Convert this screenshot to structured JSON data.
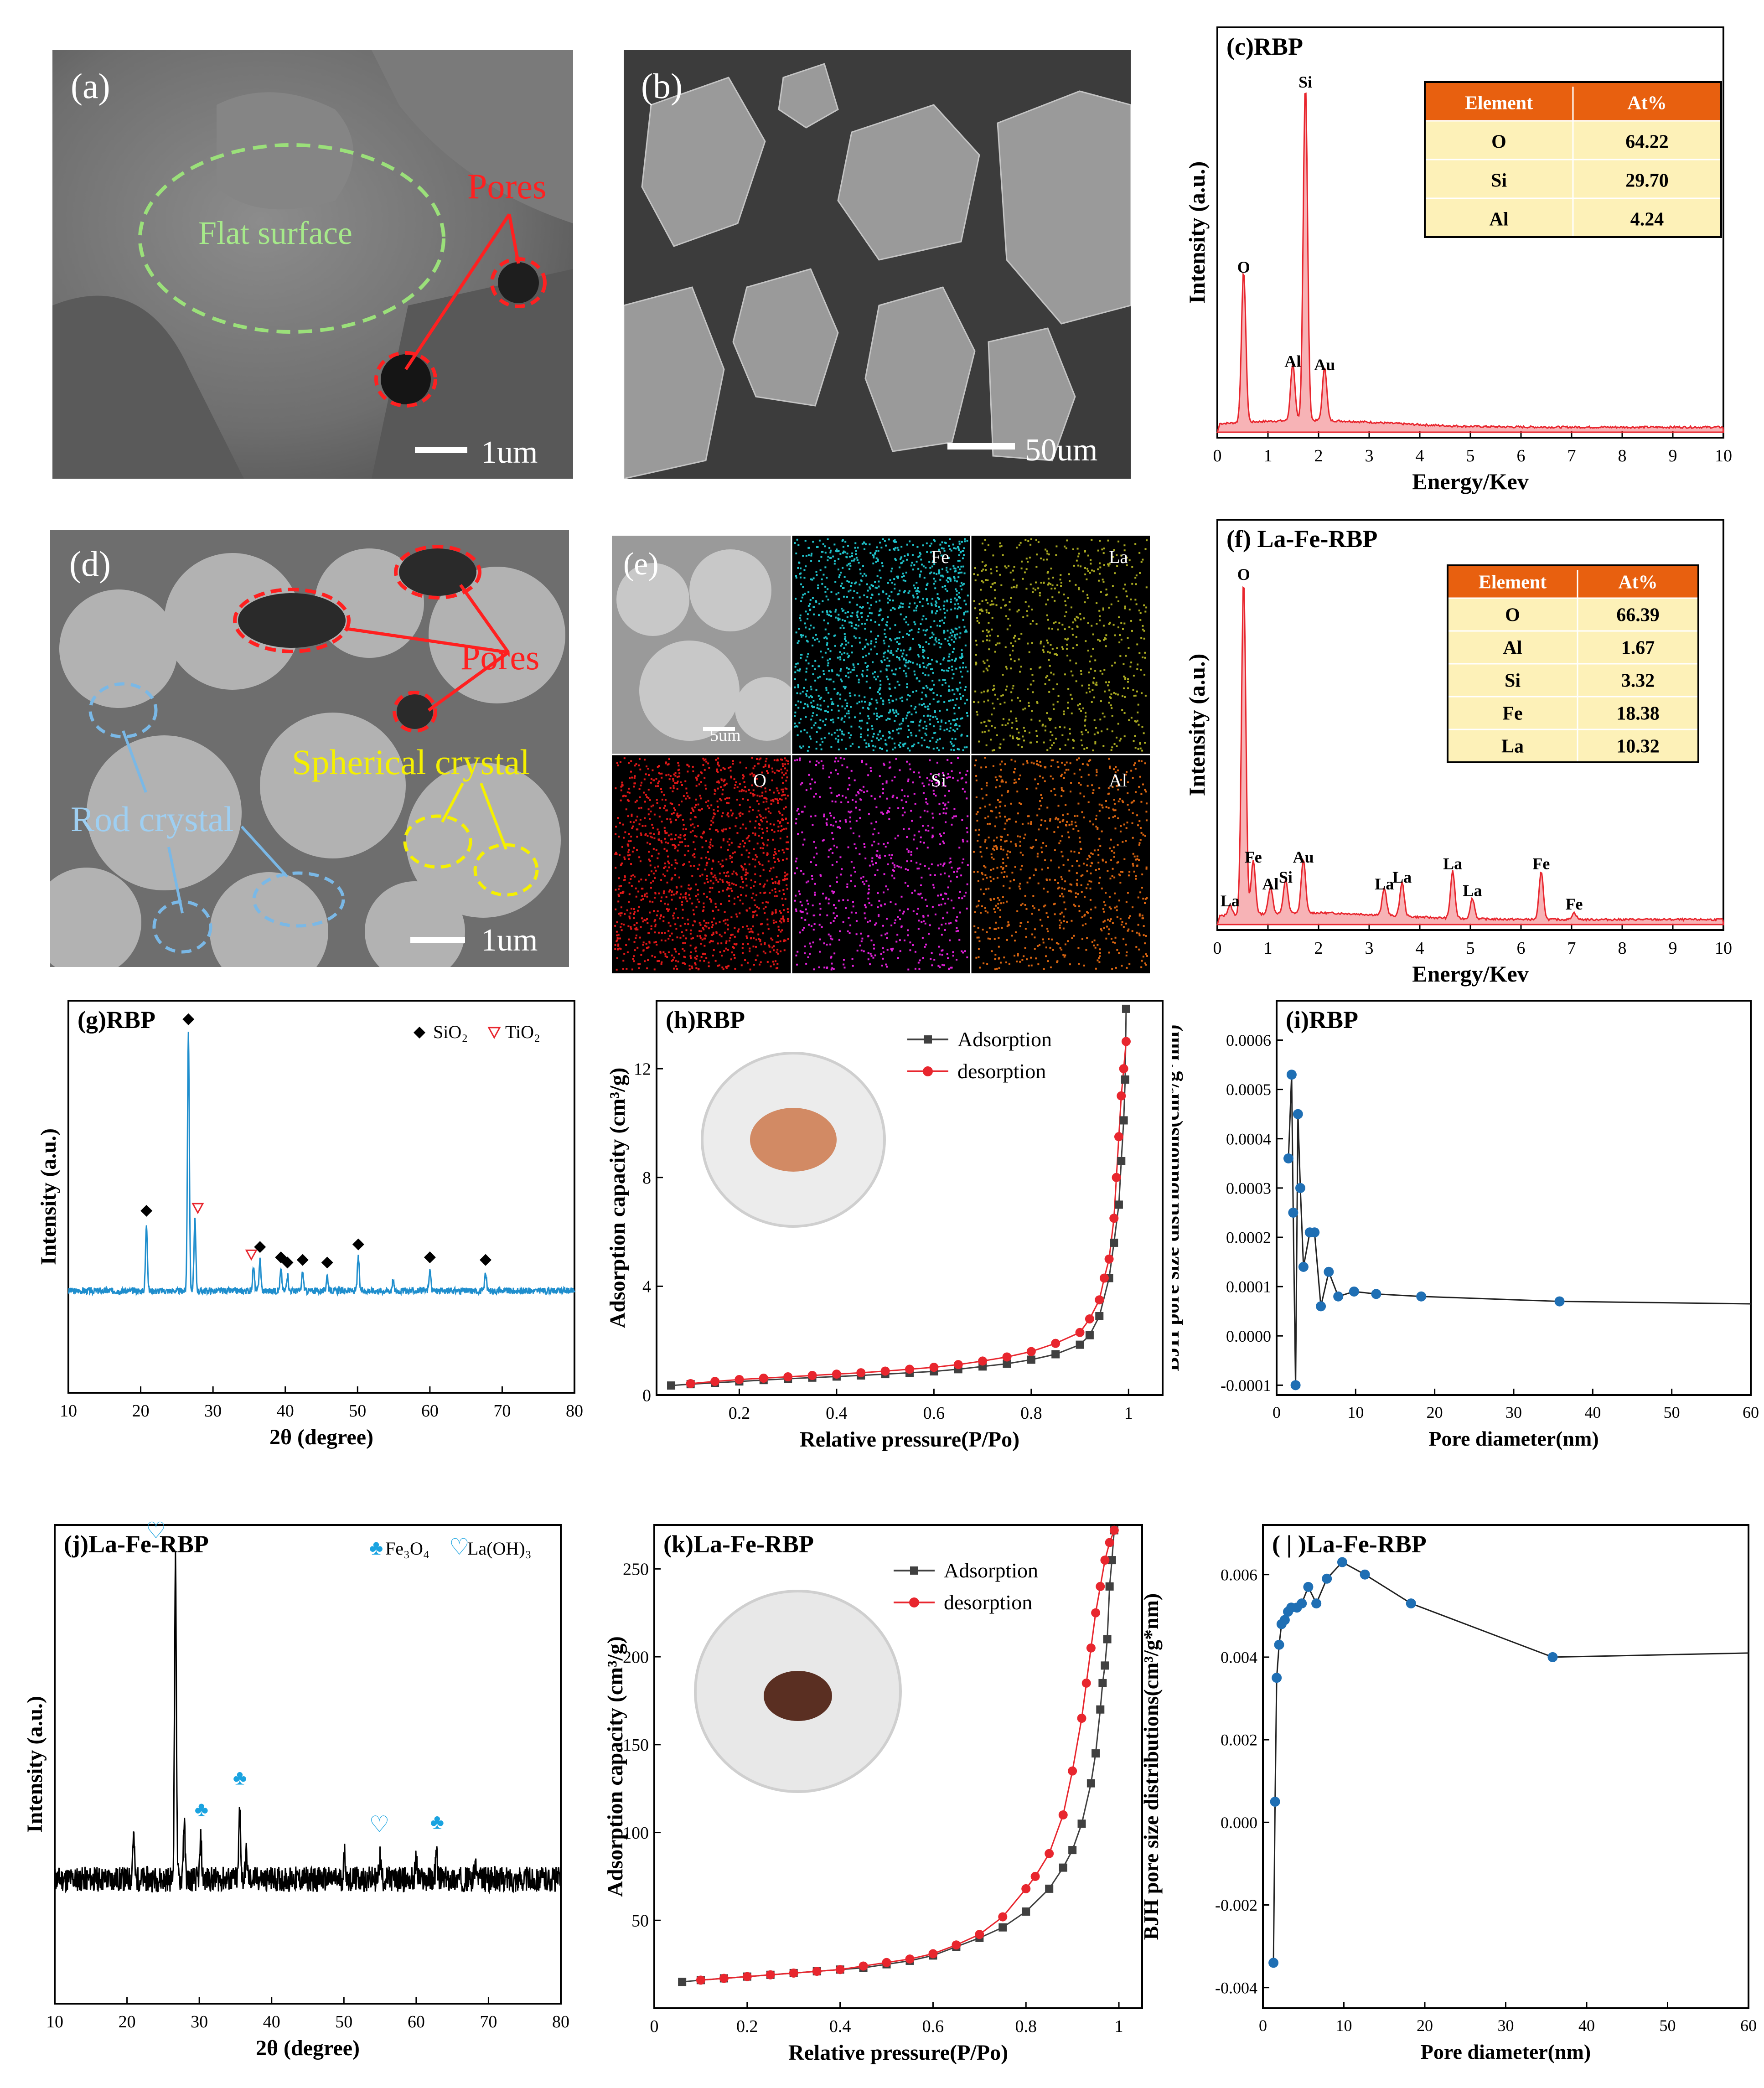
{
  "panel_a": {
    "label": "(a)",
    "flat_surface": "Flat surface",
    "pores": "Pores",
    "scale": "1um"
  },
  "panel_b": {
    "label": "(b)",
    "scale": "50um"
  },
  "panel_d": {
    "label": "(d)",
    "pores": "Pores",
    "rod_crystal": "Rod crystal",
    "spherical_crystal": "Spherical crystal",
    "scale": "1um"
  },
  "panel_e": {
    "label": "(e)",
    "scale": "5um",
    "maps": [
      "Fe",
      "La",
      "O",
      "Si",
      "Al"
    ]
  },
  "colors": {
    "eds": "#e8262e",
    "xrd_rbp": "#1f8ecd",
    "adsorption": "#404040",
    "desorption": "#e8262e",
    "bjh": "#1f6fb4",
    "table_header": "#e8600f",
    "table_body": "#fdf1b8"
  },
  "chart_data": [
    {
      "id": "c",
      "type": "line",
      "title": "(c)RBP",
      "xlabel": "Energy/Kev",
      "ylabel": "Intensity (a.u.)",
      "xlim": [
        0,
        10
      ],
      "xticks": [
        0,
        1,
        2,
        3,
        4,
        5,
        6,
        7,
        8,
        9,
        10
      ],
      "peaks": [
        {
          "label": "O",
          "x": 0.52,
          "y": 0.45
        },
        {
          "label": "Si",
          "x": 1.74,
          "y": 1.0
        },
        {
          "label": "Al",
          "x": 1.49,
          "y": 0.17
        },
        {
          "label": "Au",
          "x": 2.12,
          "y": 0.16
        }
      ],
      "table": {
        "headers": [
          "Element",
          "At%"
        ],
        "rows": [
          [
            "O",
            "64.22"
          ],
          [
            "Si",
            "29.70"
          ],
          [
            "Al",
            "4.24"
          ]
        ]
      }
    },
    {
      "id": "f",
      "type": "line",
      "title": "(f) La-Fe-RBP",
      "xlabel": "Energy/Kev",
      "ylabel": "Intensity (a.u.)",
      "xlim": [
        0,
        10
      ],
      "xticks": [
        0,
        1,
        2,
        3,
        4,
        5,
        6,
        7,
        8,
        9,
        10
      ],
      "peaks": [
        {
          "label": "O",
          "x": 0.52,
          "y": 1.0
        },
        {
          "label": "La",
          "x": 0.25,
          "y": 0.03
        },
        {
          "label": "Fe",
          "x": 0.71,
          "y": 0.16
        },
        {
          "label": "Al",
          "x": 1.05,
          "y": 0.08
        },
        {
          "label": "Si",
          "x": 1.35,
          "y": 0.1
        },
        {
          "label": "Au",
          "x": 1.7,
          "y": 0.16
        },
        {
          "label": "La",
          "x": 3.3,
          "y": 0.08
        },
        {
          "label": "La",
          "x": 3.65,
          "y": 0.1
        },
        {
          "label": "La",
          "x": 4.65,
          "y": 0.14
        },
        {
          "label": "La",
          "x": 5.04,
          "y": 0.06
        },
        {
          "label": "Fe",
          "x": 6.4,
          "y": 0.14
        },
        {
          "label": "Fe",
          "x": 7.05,
          "y": 0.02
        }
      ],
      "table": {
        "headers": [
          "Element",
          "At%"
        ],
        "rows": [
          [
            "O",
            "66.39"
          ],
          [
            "Al",
            "1.67"
          ],
          [
            "Si",
            "3.32"
          ],
          [
            "Fe",
            "18.38"
          ],
          [
            "La",
            "10.32"
          ]
        ]
      }
    },
    {
      "id": "g",
      "type": "line",
      "title": "(g)RBP",
      "xlabel": "2θ (degree)",
      "ylabel": "Intensity (a.u.)",
      "xlim": [
        10,
        80
      ],
      "xticks": [
        10,
        20,
        30,
        40,
        50,
        60,
        70,
        80
      ],
      "legend": [
        {
          "symbol": "◆",
          "label": "SiO₂"
        },
        {
          "symbol": "▽",
          "label": "TiO₂"
        }
      ],
      "peaks": [
        {
          "x": 20.8,
          "y": 0.26
        },
        {
          "x": 26.6,
          "y": 1.0
        },
        {
          "x": 27.5,
          "y": 0.27
        },
        {
          "x": 35.6,
          "y": 0.09
        },
        {
          "x": 36.5,
          "y": 0.12
        },
        {
          "x": 39.4,
          "y": 0.08
        },
        {
          "x": 40.3,
          "y": 0.06
        },
        {
          "x": 42.4,
          "y": 0.07
        },
        {
          "x": 45.8,
          "y": 0.06
        },
        {
          "x": 50.1,
          "y": 0.13
        },
        {
          "x": 54.9,
          "y": 0.04
        },
        {
          "x": 60.0,
          "y": 0.08
        },
        {
          "x": 67.7,
          "y": 0.07
        }
      ],
      "markers": [
        {
          "x": 20.8,
          "type": "SiO2"
        },
        {
          "x": 26.6,
          "type": "SiO2"
        },
        {
          "x": 27.9,
          "type": "TiO2"
        },
        {
          "x": 35.3,
          "type": "TiO2"
        },
        {
          "x": 36.5,
          "type": "SiO2"
        },
        {
          "x": 39.4,
          "type": "SiO2"
        },
        {
          "x": 40.3,
          "type": "SiO2"
        },
        {
          "x": 42.4,
          "type": "SiO2"
        },
        {
          "x": 45.8,
          "type": "SiO2"
        },
        {
          "x": 50.1,
          "type": "SiO2"
        },
        {
          "x": 60.0,
          "type": "SiO2"
        },
        {
          "x": 67.7,
          "type": "SiO2"
        }
      ]
    },
    {
      "id": "h",
      "type": "line",
      "title": "(h)RBP",
      "xlabel": "Relative pressure(P/Po)",
      "ylabel": "Adsorption capacity (cm³/g)",
      "xlim": [
        0.03,
        1.07
      ],
      "ylim": [
        0,
        14.5
      ],
      "xticks": [
        0.2,
        0.4,
        0.6,
        0.8,
        1.0
      ],
      "yticks": [
        0,
        4,
        8,
        12
      ],
      "series": [
        {
          "name": "Adsorption",
          "x": [
            0.06,
            0.1,
            0.15,
            0.2,
            0.25,
            0.3,
            0.35,
            0.4,
            0.45,
            0.5,
            0.55,
            0.6,
            0.65,
            0.7,
            0.75,
            0.8,
            0.85,
            0.9,
            0.92,
            0.94,
            0.96,
            0.97,
            0.98,
            0.985,
            0.99,
            0.993,
            0.995
          ],
          "y": [
            0.35,
            0.4,
            0.45,
            0.5,
            0.55,
            0.6,
            0.64,
            0.68,
            0.72,
            0.77,
            0.82,
            0.87,
            0.95,
            1.05,
            1.15,
            1.3,
            1.5,
            1.85,
            2.2,
            2.9,
            4.3,
            5.6,
            7.0,
            8.6,
            10.1,
            11.6,
            14.2
          ]
        },
        {
          "name": "desorption",
          "x": [
            0.995,
            0.99,
            0.985,
            0.98,
            0.975,
            0.97,
            0.96,
            0.95,
            0.94,
            0.92,
            0.9,
            0.85,
            0.8,
            0.75,
            0.7,
            0.65,
            0.6,
            0.55,
            0.5,
            0.45,
            0.4,
            0.35,
            0.3,
            0.25,
            0.2,
            0.15,
            0.1
          ],
          "y": [
            13.0,
            12.0,
            11.0,
            9.5,
            8.0,
            6.5,
            5.0,
            4.3,
            3.5,
            2.8,
            2.3,
            1.9,
            1.6,
            1.4,
            1.25,
            1.12,
            1.02,
            0.95,
            0.88,
            0.82,
            0.77,
            0.72,
            0.67,
            0.62,
            0.57,
            0.5,
            0.42
          ]
        }
      ]
    },
    {
      "id": "i",
      "type": "line",
      "title": "(i)RBP",
      "xlabel": "Pore diameter(nm)",
      "ylabel": "BJH pore size distributions(cm³/g*nm)",
      "xlim": [
        0,
        60
      ],
      "ylim": [
        -0.00012,
        0.00068
      ],
      "xticks": [
        0,
        10,
        20,
        30,
        40,
        50,
        60
      ],
      "yticks": [
        -0.0001,
        0,
        0.0001,
        0.0002,
        0.0003,
        0.0004,
        0.0005,
        0.0006
      ],
      "ytick_labels": [
        "-0.0001",
        "0.0000",
        "0.0001",
        "0.0002",
        "0.0003",
        "0.0004",
        "0.0005",
        "0.0006"
      ],
      "points": {
        "x": [
          1.5,
          1.9,
          2.1,
          2.4,
          2.7,
          3.0,
          3.4,
          4.2,
          4.8,
          5.6,
          6.6,
          7.8,
          9.8,
          12.6,
          18.3,
          35.8
        ],
        "y": [
          0.00036,
          0.00053,
          0.00025,
          -0.0001,
          0.00045,
          0.0003,
          0.00014,
          0.00021,
          0.00021,
          6e-05,
          0.00013,
          8e-05,
          9e-05,
          8.5e-05,
          8e-05,
          7e-05
        ]
      }
    },
    {
      "id": "j",
      "type": "line",
      "title": "(j)La-Fe-RBP",
      "xlabel": "2θ (degree)",
      "ylabel": "Intensity (a.u.)",
      "xlim": [
        10,
        80
      ],
      "xticks": [
        10,
        20,
        30,
        40,
        50,
        60,
        70,
        80
      ],
      "legend": [
        {
          "symbol": "♣",
          "label": "Fe₃O₄"
        },
        {
          "symbol": "♡",
          "label": "La(OH)₃"
        }
      ],
      "peaks": [
        {
          "x": 20.9,
          "y": 0.14
        },
        {
          "x": 26.7,
          "y": 1.0
        },
        {
          "x": 27.9,
          "y": 0.18
        },
        {
          "x": 30.2,
          "y": 0.12
        },
        {
          "x": 35.6,
          "y": 0.22
        },
        {
          "x": 36.5,
          "y": 0.08
        },
        {
          "x": 50.1,
          "y": 0.08
        },
        {
          "x": 55.0,
          "y": 0.07
        },
        {
          "x": 60.0,
          "y": 0.06
        },
        {
          "x": 62.8,
          "y": 0.08
        },
        {
          "x": 68.2,
          "y": 0.05
        }
      ],
      "markers": [
        {
          "x": 24.0,
          "type": "La(OH)3"
        },
        {
          "x": 30.3,
          "type": "Fe3O4"
        },
        {
          "x": 35.6,
          "type": "Fe3O4"
        },
        {
          "x": 54.9,
          "type": "La(OH)3"
        },
        {
          "x": 62.9,
          "type": "Fe3O4"
        }
      ]
    },
    {
      "id": "k",
      "type": "line",
      "title": "(k)La-Fe-RBP",
      "xlabel": "Relative pressure(P/Po)",
      "ylabel": "Adsorption capacity (cm³/g)",
      "xlim": [
        0,
        1.05
      ],
      "ylim": [
        0,
        275
      ],
      "xticks": [
        0,
        0.2,
        0.4,
        0.6,
        0.8,
        1.0
      ],
      "yticks": [
        50,
        100,
        150,
        200,
        250
      ],
      "series": [
        {
          "name": "Adsorption",
          "x": [
            0.06,
            0.1,
            0.15,
            0.2,
            0.25,
            0.3,
            0.35,
            0.4,
            0.45,
            0.5,
            0.55,
            0.6,
            0.65,
            0.7,
            0.75,
            0.8,
            0.85,
            0.88,
            0.9,
            0.92,
            0.94,
            0.95,
            0.96,
            0.965,
            0.97,
            0.975,
            0.98,
            0.985,
            0.99
          ],
          "y": [
            15,
            16,
            17,
            18,
            19,
            20,
            21,
            22,
            23,
            25,
            27,
            30,
            35,
            40,
            46,
            55,
            68,
            80,
            90,
            105,
            128,
            145,
            170,
            185,
            195,
            210,
            240,
            255,
            272
          ]
        },
        {
          "name": "desorption",
          "x": [
            0.99,
            0.98,
            0.97,
            0.96,
            0.95,
            0.94,
            0.93,
            0.92,
            0.9,
            0.88,
            0.85,
            0.82,
            0.8,
            0.75,
            0.7,
            0.65,
            0.6,
            0.55,
            0.5,
            0.45,
            0.4,
            0.35,
            0.3,
            0.25,
            0.2,
            0.15,
            0.1
          ],
          "y": [
            272,
            265,
            255,
            240,
            225,
            205,
            185,
            165,
            135,
            110,
            88,
            75,
            68,
            52,
            42,
            36,
            31,
            28,
            26,
            24,
            22,
            21,
            20,
            19,
            18,
            17,
            16
          ]
        }
      ]
    },
    {
      "id": "l",
      "type": "line",
      "title": "( | )La-Fe-RBP",
      "xlabel": "Pore diameter(nm)",
      "ylabel": "BJH pore size distributions(cm³/g*nm)",
      "xlim": [
        0,
        60
      ],
      "ylim": [
        -0.0045,
        0.0072
      ],
      "xticks": [
        0,
        10,
        20,
        30,
        40,
        50,
        60
      ],
      "yticks": [
        -0.004,
        -0.002,
        0,
        0.002,
        0.004,
        0.006
      ],
      "ytick_labels": [
        "-0.004",
        "-0.002",
        "0.000",
        "0.002",
        "0.004",
        "0.006"
      ],
      "points": {
        "x": [
          1.3,
          1.5,
          1.7,
          2.0,
          2.3,
          2.7,
          3.1,
          3.5,
          4.2,
          4.8,
          5.6,
          6.6,
          7.9,
          9.8,
          12.6,
          18.3,
          35.8
        ],
        "y": [
          -0.0034,
          0.0005,
          0.0035,
          0.0043,
          0.0048,
          0.0049,
          0.0051,
          0.0052,
          0.0052,
          0.0053,
          0.0057,
          0.0053,
          0.0059,
          0.0063,
          0.006,
          0.0053,
          0.004
        ]
      }
    }
  ]
}
